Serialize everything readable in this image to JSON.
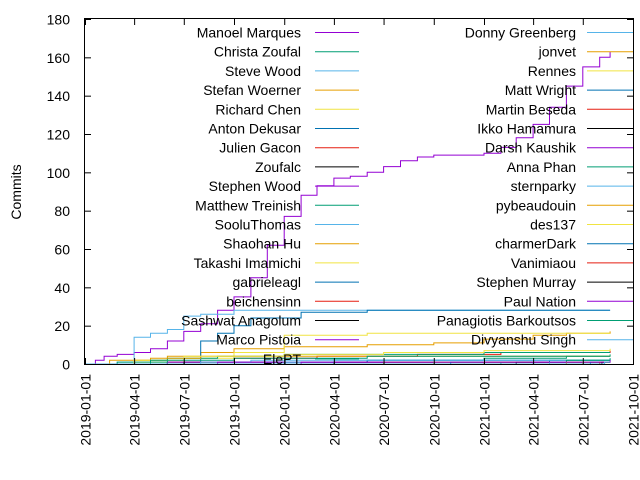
{
  "chart_data": {
    "type": "line",
    "ylabel": "Commits",
    "ylim": [
      0,
      180
    ],
    "yticks": [
      0,
      20,
      40,
      60,
      80,
      100,
      120,
      140,
      160,
      180
    ],
    "yticklabels": [
      "0",
      "20",
      "40",
      "60",
      "80",
      "100",
      "120",
      "140",
      "160",
      "180"
    ],
    "xlim": [
      "2019-01-01",
      "2021-10-01"
    ],
    "xticks": [
      "2019-01-01",
      "2019-04-01",
      "2019-07-01",
      "2019-10-01",
      "2020-01-01",
      "2020-04-01",
      "2020-07-01",
      "2020-10-01",
      "2021-01-01",
      "2021-04-01",
      "2021-07-01",
      "2021-10-01"
    ],
    "xticklabels": [
      "2019-01-01",
      "2019-04-01",
      "2019-07-01",
      "2019-10-01",
      "2020-01-01",
      "2020-04-01",
      "2020-07-01",
      "2020-10-01",
      "2021-01-01",
      "2021-04-01",
      "2021-07-01",
      "2021-10-01"
    ],
    "grid": false,
    "legend_position": "top, two columns",
    "series": [
      {
        "name": "Manoel Marques",
        "color": "#9400d3",
        "points": [
          [
            "2019-01-01",
            0
          ],
          [
            "2019-01-20",
            2
          ],
          [
            "2019-02-05",
            4
          ],
          [
            "2019-03-01",
            5
          ],
          [
            "2019-04-01",
            6
          ],
          [
            "2019-05-01",
            8
          ],
          [
            "2019-06-01",
            12
          ],
          [
            "2019-07-01",
            17
          ],
          [
            "2019-08-01",
            21
          ],
          [
            "2019-09-01",
            28
          ],
          [
            "2019-10-01",
            35
          ],
          [
            "2019-11-01",
            45
          ],
          [
            "2019-12-01",
            62
          ],
          [
            "2020-01-01",
            77
          ],
          [
            "2020-02-01",
            88
          ],
          [
            "2020-03-01",
            93
          ],
          [
            "2020-04-01",
            97
          ],
          [
            "2020-05-01",
            98
          ],
          [
            "2020-06-01",
            100
          ],
          [
            "2020-07-01",
            103
          ],
          [
            "2020-08-01",
            106
          ],
          [
            "2020-09-01",
            108
          ],
          [
            "2020-10-01",
            109
          ],
          [
            "2020-12-01",
            109
          ],
          [
            "2021-01-01",
            110
          ],
          [
            "2021-02-01",
            113
          ],
          [
            "2021-03-01",
            118
          ],
          [
            "2021-04-01",
            125
          ],
          [
            "2021-05-01",
            134
          ],
          [
            "2021-06-01",
            145
          ],
          [
            "2021-07-01",
            155
          ],
          [
            "2021-08-01",
            160
          ],
          [
            "2021-08-20",
            163
          ]
        ]
      },
      {
        "name": "Christa Zoufal",
        "color": "#009e73",
        "points": [
          [
            "2019-02-01",
            0
          ],
          [
            "2019-05-01",
            0
          ],
          [
            "2019-06-01",
            1
          ],
          [
            "2019-09-01",
            1
          ],
          [
            "2020-06-01",
            2
          ],
          [
            "2021-01-01",
            3
          ],
          [
            "2021-06-01",
            4
          ],
          [
            "2021-08-20",
            5
          ]
        ]
      },
      {
        "name": "Steve Wood",
        "color": "#56b4e9",
        "points": [
          [
            "2019-01-01",
            0
          ],
          [
            "2019-03-01",
            1
          ],
          [
            "2019-04-01",
            14
          ],
          [
            "2019-05-01",
            16
          ],
          [
            "2019-06-01",
            18
          ],
          [
            "2019-07-01",
            25
          ],
          [
            "2019-08-01",
            26
          ],
          [
            "2019-10-01",
            28
          ],
          [
            "2021-08-20",
            28
          ]
        ]
      },
      {
        "name": "Stefan Woerner",
        "color": "#e69f00",
        "points": [
          [
            "2019-01-01",
            0
          ],
          [
            "2019-04-01",
            2
          ],
          [
            "2019-06-01",
            4
          ],
          [
            "2019-08-01",
            6
          ],
          [
            "2019-10-01",
            8
          ],
          [
            "2020-01-01",
            9
          ],
          [
            "2020-06-01",
            10
          ],
          [
            "2020-10-01",
            11
          ],
          [
            "2021-01-01",
            13
          ],
          [
            "2021-04-01",
            15
          ],
          [
            "2021-06-01",
            16
          ],
          [
            "2021-08-20",
            17
          ]
        ]
      },
      {
        "name": "Richard Chen",
        "color": "#f0e442",
        "points": [
          [
            "2019-01-01",
            0
          ],
          [
            "2019-04-01",
            1
          ],
          [
            "2019-07-01",
            3
          ],
          [
            "2019-10-01",
            6
          ],
          [
            "2020-01-01",
            15
          ],
          [
            "2020-06-01",
            16
          ],
          [
            "2021-08-20",
            16
          ]
        ]
      },
      {
        "name": "Anton Dekusar",
        "color": "#0072b2",
        "points": [
          [
            "2019-01-01",
            0
          ],
          [
            "2019-06-01",
            1
          ],
          [
            "2019-08-01",
            12
          ],
          [
            "2019-09-01",
            16
          ],
          [
            "2019-10-01",
            20
          ],
          [
            "2019-11-01",
            24
          ],
          [
            "2020-02-01",
            27
          ],
          [
            "2020-06-01",
            28
          ],
          [
            "2021-08-20",
            28
          ]
        ]
      },
      {
        "name": "Julien Gacon",
        "color": "#e51e10",
        "points": [
          [
            "2019-01-01",
            0
          ],
          [
            "2019-06-01",
            1
          ],
          [
            "2019-10-01",
            3
          ],
          [
            "2020-03-01",
            4
          ],
          [
            "2020-09-01",
            5
          ],
          [
            "2021-02-01",
            6
          ],
          [
            "2021-08-20",
            7
          ]
        ]
      },
      {
        "name": "Zoufalc",
        "color": "#000000",
        "points": [
          [
            "2019-05-01",
            0
          ],
          [
            "2019-07-01",
            1
          ],
          [
            "2020-01-01",
            1
          ],
          [
            "2021-08-20",
            1
          ]
        ]
      },
      {
        "name": "Stephen Wood",
        "color": "#9400d3",
        "points": [
          [
            "2019-01-01",
            0
          ],
          [
            "2019-06-01",
            1
          ],
          [
            "2019-09-01",
            1
          ],
          [
            "2021-08-20",
            1
          ]
        ]
      },
      {
        "name": "Matthew Treinish",
        "color": "#009e73",
        "points": [
          [
            "2019-01-01",
            0
          ],
          [
            "2019-03-01",
            1
          ],
          [
            "2019-06-01",
            3
          ],
          [
            "2019-09-01",
            4
          ],
          [
            "2020-01-01",
            5
          ],
          [
            "2020-06-01",
            5
          ],
          [
            "2021-01-01",
            6
          ],
          [
            "2021-08-20",
            6
          ]
        ]
      },
      {
        "name": "SooluThomas",
        "color": "#56b4e9",
        "points": [
          [
            "2019-01-01",
            0
          ],
          [
            "2019-08-01",
            1
          ],
          [
            "2019-11-01",
            2
          ],
          [
            "2020-06-01",
            2
          ],
          [
            "2021-08-20",
            3
          ]
        ]
      },
      {
        "name": "Shaohan Hu",
        "color": "#e69f00",
        "points": [
          [
            "2019-01-01",
            0
          ],
          [
            "2019-02-15",
            2
          ],
          [
            "2019-05-01",
            3
          ],
          [
            "2019-08-01",
            4
          ],
          [
            "2021-08-20",
            4
          ]
        ]
      },
      {
        "name": "Takashi Imamichi",
        "color": "#f0e442",
        "points": [
          [
            "2019-01-01",
            0
          ],
          [
            "2019-04-01",
            2
          ],
          [
            "2019-07-01",
            4
          ],
          [
            "2020-01-01",
            5
          ],
          [
            "2020-07-01",
            6
          ],
          [
            "2021-01-01",
            7
          ],
          [
            "2021-08-20",
            8
          ]
        ]
      },
      {
        "name": "gabrieleagl",
        "color": "#0072b2",
        "points": [
          [
            "2019-01-01",
            0
          ],
          [
            "2019-12-01",
            1
          ],
          [
            "2020-06-01",
            2
          ],
          [
            "2021-08-20",
            2
          ]
        ]
      },
      {
        "name": "beichensinn",
        "color": "#e51e10",
        "points": [
          [
            "2019-01-01",
            0
          ],
          [
            "2020-02-01",
            1
          ],
          [
            "2021-08-20",
            1
          ]
        ]
      },
      {
        "name": "Sashwat Anagolum",
        "color": "#000000",
        "points": [
          [
            "2019-01-01",
            0
          ],
          [
            "2020-04-01",
            1
          ],
          [
            "2021-08-20",
            1
          ]
        ]
      },
      {
        "name": "Marco Pistoia",
        "color": "#9400d3",
        "points": [
          [
            "2019-01-01",
            0
          ],
          [
            "2019-09-01",
            1
          ],
          [
            "2021-08-20",
            1
          ]
        ]
      },
      {
        "name": "ElePT",
        "color": "#009e73",
        "points": [
          [
            "2019-01-01",
            0
          ],
          [
            "2021-02-01",
            1
          ],
          [
            "2021-05-01",
            2
          ],
          [
            "2021-08-20",
            3
          ]
        ]
      },
      {
        "name": "Donny Greenberg",
        "color": "#56b4e9",
        "points": [
          [
            "2019-01-01",
            0
          ],
          [
            "2020-01-01",
            1
          ],
          [
            "2020-04-01",
            2
          ],
          [
            "2021-08-20",
            2
          ]
        ]
      },
      {
        "name": "jonvet",
        "color": "#e69f00",
        "points": [
          [
            "2019-01-01",
            0
          ],
          [
            "2020-07-01",
            1
          ],
          [
            "2021-08-20",
            1
          ]
        ]
      },
      {
        "name": "Rennes",
        "color": "#f0e442",
        "points": [
          [
            "2019-01-01",
            0
          ],
          [
            "2020-10-01",
            1
          ],
          [
            "2021-08-20",
            1
          ]
        ]
      },
      {
        "name": "Matt Wright",
        "color": "#0072b2",
        "points": [
          [
            "2019-01-01",
            0
          ],
          [
            "2020-11-01",
            1
          ],
          [
            "2021-08-20",
            1
          ]
        ]
      },
      {
        "name": "Martin Beseda",
        "color": "#e51e10",
        "points": [
          [
            "2019-01-01",
            0
          ],
          [
            "2021-01-01",
            1
          ],
          [
            "2021-08-20",
            1
          ]
        ]
      },
      {
        "name": "Ikko Hamamura",
        "color": "#000000",
        "points": [
          [
            "2019-01-01",
            0
          ],
          [
            "2021-03-01",
            1
          ],
          [
            "2021-08-20",
            1
          ]
        ]
      },
      {
        "name": "Darsh Kaushik",
        "color": "#9400d3",
        "points": [
          [
            "2019-01-01",
            0
          ],
          [
            "2021-04-01",
            1
          ],
          [
            "2021-08-20",
            1
          ]
        ]
      },
      {
        "name": "Anna Phan",
        "color": "#009e73",
        "points": [
          [
            "2019-01-01",
            0
          ],
          [
            "2021-06-01",
            2
          ],
          [
            "2021-08-20",
            2
          ]
        ]
      },
      {
        "name": "sternparky",
        "color": "#56b4e9",
        "points": [
          [
            "2019-01-01",
            0
          ],
          [
            "2021-05-01",
            1
          ],
          [
            "2021-08-20",
            1
          ]
        ]
      },
      {
        "name": "pybeaudouin",
        "color": "#e69f00",
        "points": [
          [
            "2019-01-01",
            0
          ],
          [
            "2021-06-01",
            1
          ],
          [
            "2021-08-20",
            1
          ]
        ]
      },
      {
        "name": "des137",
        "color": "#f0e442",
        "points": [
          [
            "2019-01-01",
            0
          ],
          [
            "2021-07-01",
            1
          ],
          [
            "2021-08-20",
            1
          ]
        ]
      },
      {
        "name": "charmerDark",
        "color": "#0072b2",
        "points": [
          [
            "2019-01-01",
            0
          ],
          [
            "2021-07-15",
            1
          ],
          [
            "2021-08-20",
            1
          ]
        ]
      },
      {
        "name": "Vanimiaou",
        "color": "#e51e10",
        "points": [
          [
            "2019-01-01",
            0
          ],
          [
            "2021-08-01",
            1
          ],
          [
            "2021-08-20",
            1
          ]
        ]
      },
      {
        "name": "Stephen Murray",
        "color": "#000000",
        "points": [
          [
            "2019-01-01",
            0
          ],
          [
            "2021-08-05",
            1
          ],
          [
            "2021-08-20",
            1
          ]
        ]
      },
      {
        "name": "Paul Nation",
        "color": "#9400d3",
        "points": [
          [
            "2019-01-01",
            0
          ],
          [
            "2020-02-01",
            1
          ],
          [
            "2021-08-20",
            2
          ]
        ]
      },
      {
        "name": "Panagiotis Barkoutsos",
        "color": "#009e73",
        "points": [
          [
            "2019-01-01",
            0
          ],
          [
            "2019-05-01",
            2
          ],
          [
            "2019-10-01",
            3
          ],
          [
            "2020-06-01",
            4
          ],
          [
            "2021-08-20",
            4
          ]
        ]
      },
      {
        "name": "Divyanshu Singh",
        "color": "#56b4e9",
        "points": [
          [
            "2019-01-01",
            0
          ],
          [
            "2021-08-10",
            1
          ],
          [
            "2021-08-20",
            1
          ]
        ]
      }
    ]
  }
}
